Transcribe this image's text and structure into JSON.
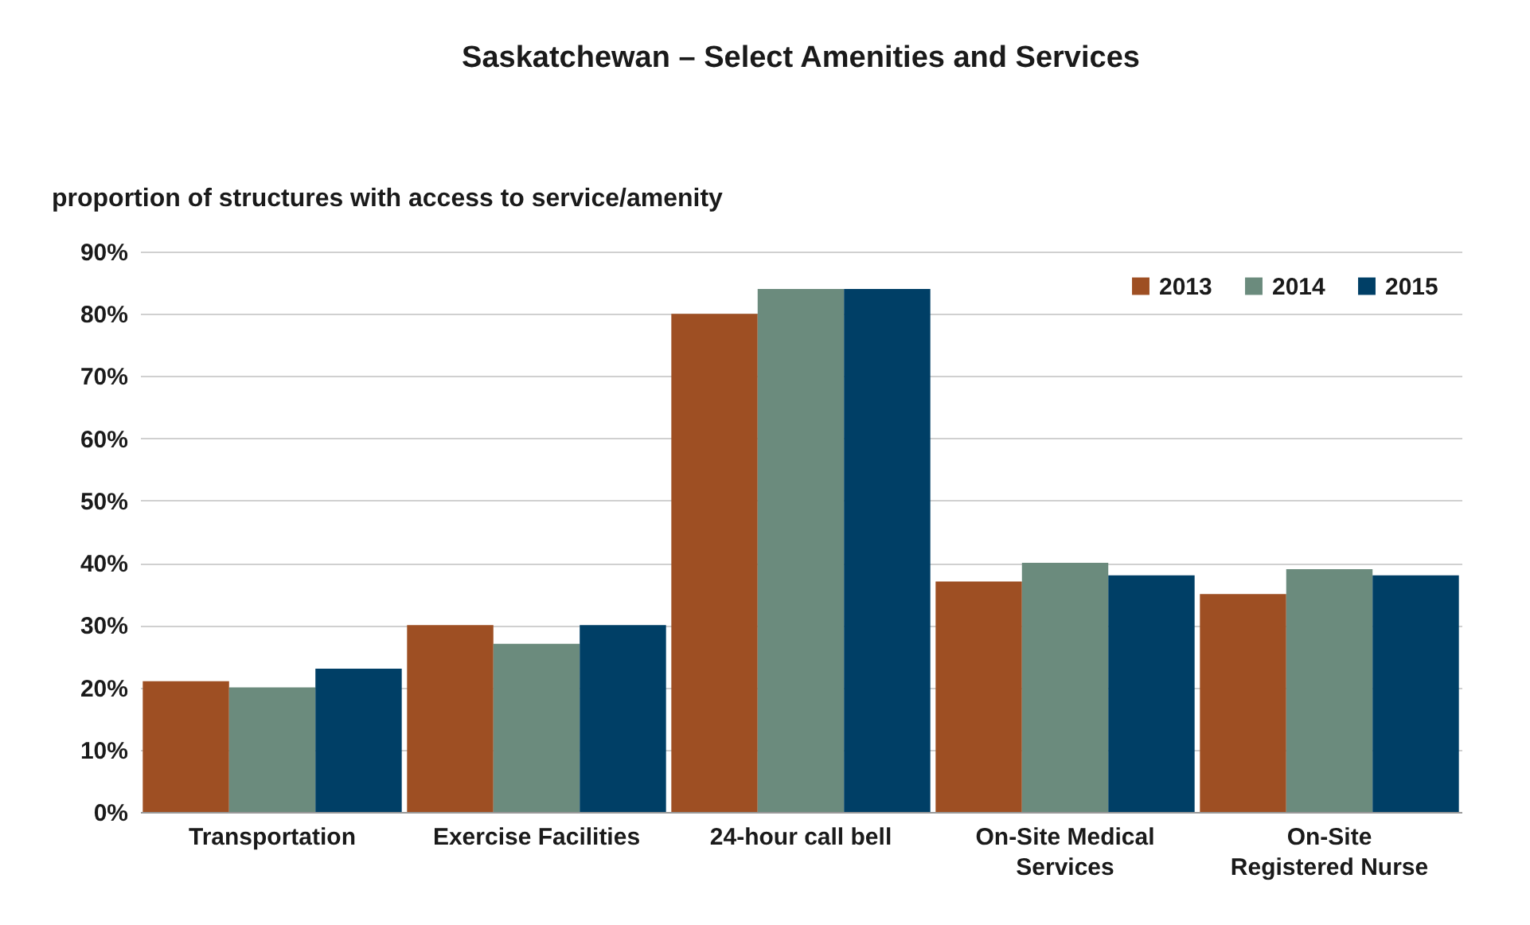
{
  "chart_data": {
    "type": "bar",
    "title": "Saskatchewan – Select Amenities and Services",
    "ylabel": "proportion of structures with access to service/amenity",
    "categories": [
      "Transportation",
      "Exercise Facilities",
      "24-hour call bell",
      "On-Site Medical Services",
      "On-Site Registered Nurse"
    ],
    "series": [
      {
        "name": "2013",
        "color": "#9e4f23",
        "values": [
          21,
          30,
          80,
          37,
          35
        ]
      },
      {
        "name": "2014",
        "color": "#6b8b7d",
        "values": [
          20,
          27,
          84,
          40,
          39
        ]
      },
      {
        "name": "2015",
        "color": "#003f66",
        "values": [
          23,
          30,
          84,
          38,
          38
        ]
      }
    ],
    "ylim": [
      0,
      90
    ],
    "yticks": [
      {
        "value": 0,
        "label": "0%"
      },
      {
        "value": 10,
        "label": "10%"
      },
      {
        "value": 20,
        "label": "20%"
      },
      {
        "value": 30,
        "label": "30%"
      },
      {
        "value": 40,
        "label": "40%"
      },
      {
        "value": 50,
        "label": "50%"
      },
      {
        "value": 60,
        "label": "60%"
      },
      {
        "value": 70,
        "label": "70%"
      },
      {
        "value": 80,
        "label": "80%"
      },
      {
        "value": 90,
        "label": "90%"
      }
    ],
    "grid": "y",
    "legend": "top right"
  }
}
